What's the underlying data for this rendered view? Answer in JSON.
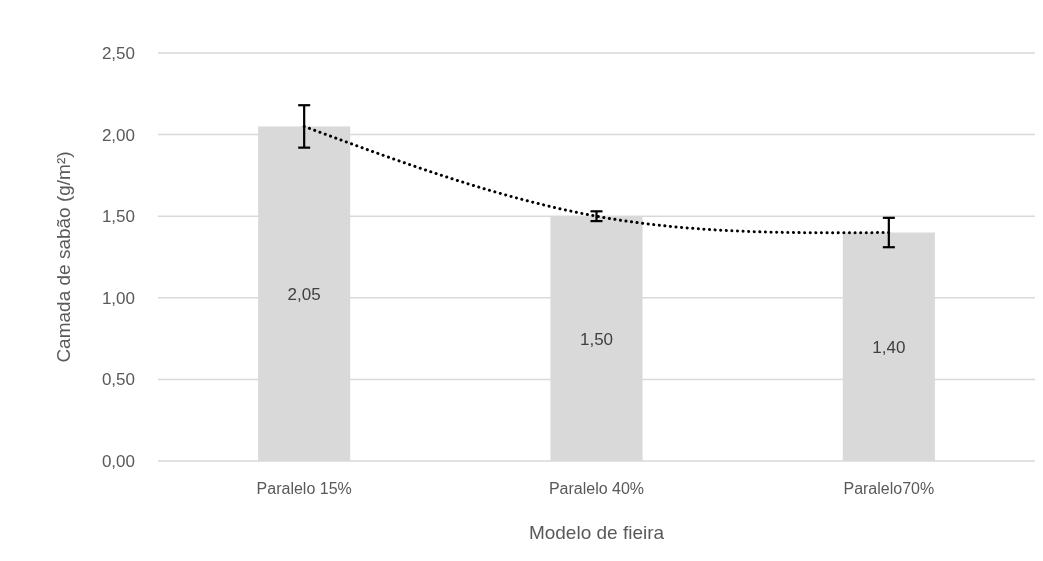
{
  "chart_data": {
    "type": "bar",
    "xlabel": "Modelo de fieira",
    "ylabel": "Camada de sabão (g/m²)",
    "categories": [
      "Paralelo 15%",
      "Paralelo 40%",
      "Paralelo70%"
    ],
    "series": [
      {
        "color": "#d9d9d9",
        "values": [
          2.05,
          1.5,
          1.4
        ],
        "errors": [
          0.13,
          0.03,
          0.09
        ],
        "value_labels": [
          "2,05",
          "1,50",
          "1,40"
        ]
      },
      {
        "type": "line",
        "color": "#000000",
        "values": [
          2.05,
          1.5,
          1.4
        ],
        "line_style": "dotted",
        "marker": "none"
      }
    ],
    "ylim": [
      0,
      2.5
    ],
    "yticks": [
      {
        "value": 0,
        "label": "0,00"
      },
      {
        "value": 0.5,
        "label": "0,50"
      },
      {
        "value": 1,
        "label": "1,00"
      },
      {
        "value": 1.5,
        "label": "1,50"
      },
      {
        "value": 2,
        "label": "2,00"
      },
      {
        "value": 2.5,
        "label": "2,50"
      }
    ],
    "grid": "y"
  }
}
